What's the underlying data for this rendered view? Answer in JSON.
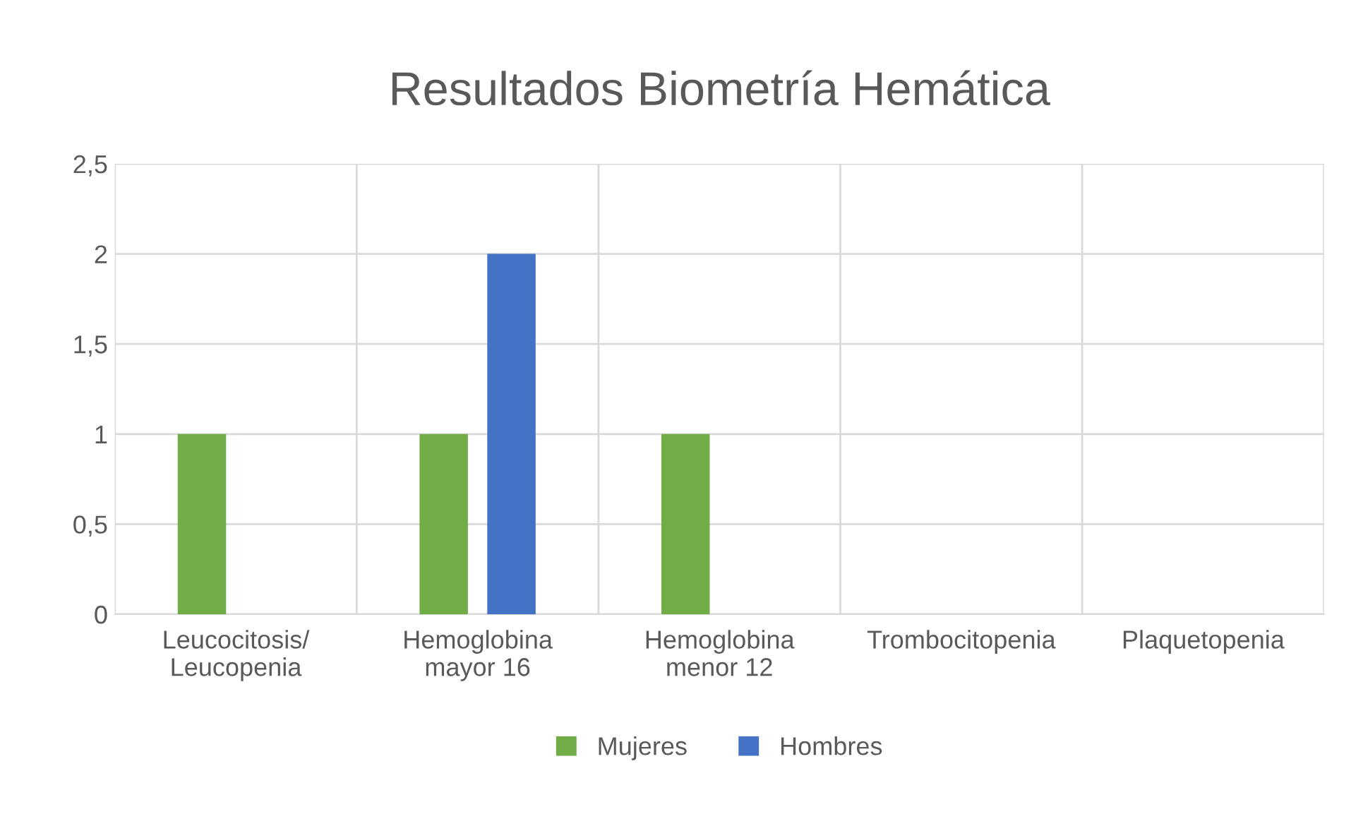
{
  "chart_data": {
    "type": "bar",
    "title": "Resultados Biometría Hemática",
    "categories": [
      "Leucocitosis/\nLeucopenia",
      "Hemoglobina\nmayor 16",
      "Hemoglobina\nmenor 12",
      "Trombocitopenia",
      "Plaquetopenia"
    ],
    "series": [
      {
        "name": "Mujeres",
        "color": "#70ad47",
        "values": [
          1,
          1,
          1,
          0,
          0
        ]
      },
      {
        "name": "Hombres",
        "color": "#4472c4",
        "values": [
          0,
          2,
          0,
          0,
          0
        ]
      }
    ],
    "ylim": [
      0,
      2.5
    ],
    "yticks": [
      {
        "value": 0,
        "label": "0"
      },
      {
        "value": 0.5,
        "label": "0,5"
      },
      {
        "value": 1,
        "label": "1"
      },
      {
        "value": 1.5,
        "label": "1,5"
      },
      {
        "value": 2,
        "label": "2"
      },
      {
        "value": 2.5,
        "label": "2,5"
      }
    ],
    "grid": true,
    "legend": "bottom"
  }
}
